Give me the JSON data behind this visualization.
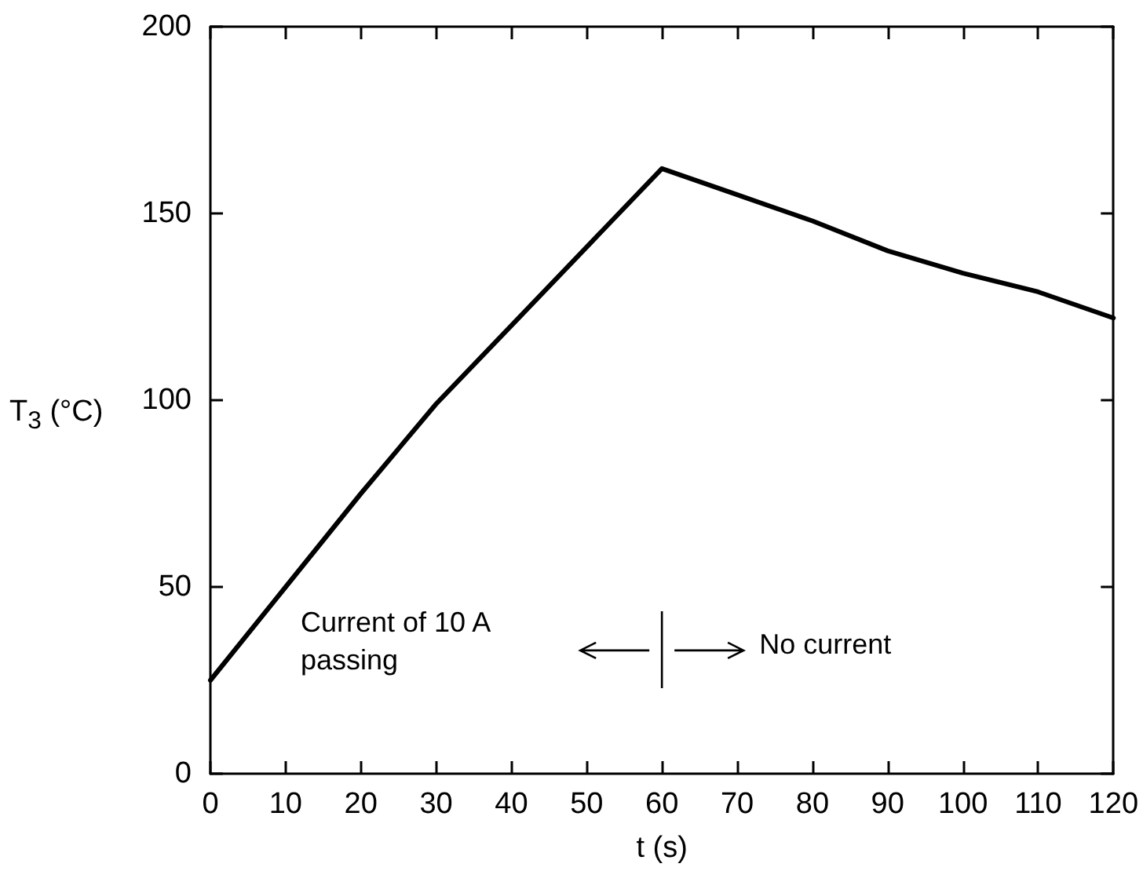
{
  "chart_data": {
    "type": "line",
    "xlabel": "t (s)",
    "ylabel": "T$_{3}$ (°C)",
    "x": [
      0,
      10,
      20,
      30,
      40,
      50,
      60,
      70,
      80,
      90,
      100,
      110,
      120
    ],
    "series": [
      {
        "color": "#000000",
        "values": [
          25,
          50,
          75,
          99,
          120,
          141,
          162,
          155,
          148,
          140,
          134,
          129,
          122
        ]
      }
    ],
    "xlim": [
      0,
      120
    ],
    "xticks": [
      0,
      10,
      20,
      30,
      40,
      50,
      60,
      70,
      80,
      90,
      100,
      110,
      120
    ],
    "ylim": [
      0,
      200
    ],
    "yticks": [
      0,
      50,
      100,
      150,
      200
    ],
    "annotations": [
      "Current of 10 A passing",
      "No current"
    ],
    "marker": "none",
    "line_style": "solid"
  }
}
